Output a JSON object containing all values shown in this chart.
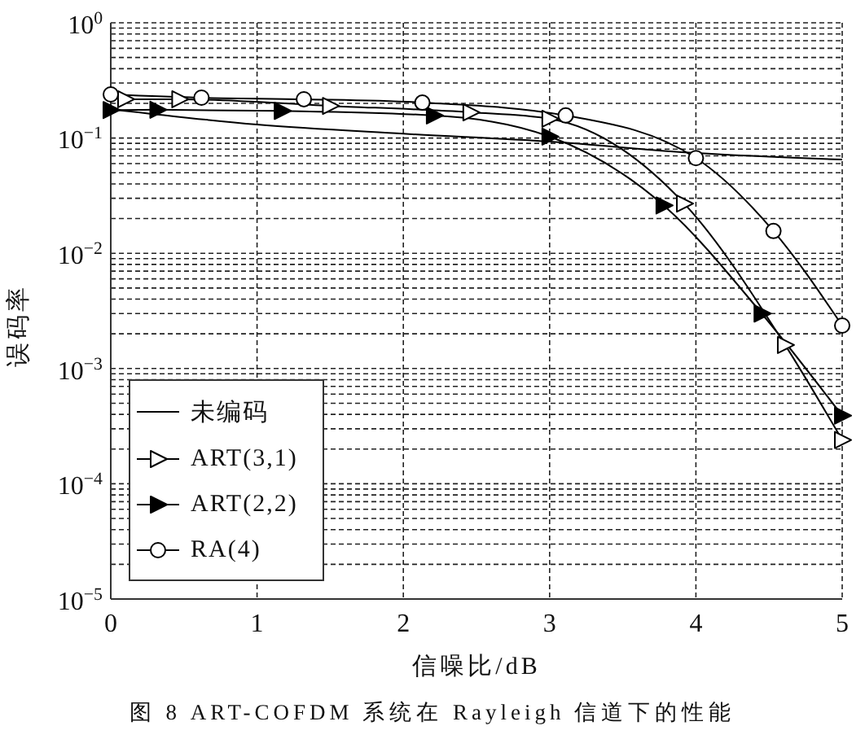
{
  "chart_data": {
    "type": "line",
    "xlabel": "信噪比/dB",
    "ylabel": "误码率",
    "annotations": [
      "图 8 ART-COFDM 系统在 Rayleigh 信道下的性能"
    ],
    "xlim": [
      0,
      5
    ],
    "xticks": [
      0,
      1,
      2,
      3,
      4,
      5
    ],
    "ylim": [
      1e-05,
      1
    ],
    "yticks": [
      {
        "value": 1e-05,
        "label": "10$^{−5}$"
      },
      {
        "value": 2e-05,
        "label": null
      },
      {
        "value": 3e-05,
        "label": null
      },
      {
        "value": 4e-05,
        "label": null
      },
      {
        "value": 5e-05,
        "label": null
      },
      {
        "value": 6e-05,
        "label": null
      },
      {
        "value": 7e-05,
        "label": null
      },
      {
        "value": 8e-05,
        "label": null
      },
      {
        "value": 9e-05,
        "label": null
      },
      {
        "value": 0.0001,
        "label": "10$^{−4}$"
      },
      {
        "value": 0.0002,
        "label": null
      },
      {
        "value": 0.0003,
        "label": null
      },
      {
        "value": 0.0004,
        "label": null
      },
      {
        "value": 0.0005,
        "label": null
      },
      {
        "value": 0.0006,
        "label": null
      },
      {
        "value": 0.0007,
        "label": null
      },
      {
        "value": 0.0008,
        "label": null
      },
      {
        "value": 0.0009,
        "label": null
      },
      {
        "value": 0.001,
        "label": "10$^{−3}$"
      },
      {
        "value": 0.002,
        "label": null
      },
      {
        "value": 0.003,
        "label": null
      },
      {
        "value": 0.004,
        "label": null
      },
      {
        "value": 0.005,
        "label": null
      },
      {
        "value": 0.006,
        "label": null
      },
      {
        "value": 0.007,
        "label": null
      },
      {
        "value": 0.008,
        "label": null
      },
      {
        "value": 0.009,
        "label": null
      },
      {
        "value": 0.01,
        "label": "10$^{−2}$"
      },
      {
        "value": 0.02,
        "label": null
      },
      {
        "value": 0.03,
        "label": null
      },
      {
        "value": 0.04,
        "label": null
      },
      {
        "value": 0.05,
        "label": null
      },
      {
        "value": 0.06,
        "label": null
      },
      {
        "value": 0.07,
        "label": null
      },
      {
        "value": 0.08,
        "label": null
      },
      {
        "value": 0.09,
        "label": null
      },
      {
        "value": 0.1,
        "label": "10$^{−1}$"
      },
      {
        "value": 0.2,
        "label": null
      },
      {
        "value": 0.3,
        "label": null
      },
      {
        "value": 0.4,
        "label": null
      },
      {
        "value": 0.5,
        "label": null
      },
      {
        "value": 0.6,
        "label": null
      },
      {
        "value": 0.7,
        "label": null
      },
      {
        "value": 0.8,
        "label": null
      },
      {
        "value": 0.9,
        "label": null
      },
      {
        "value": 1,
        "label": "10$^{0}$"
      }
    ],
    "log": "y",
    "grid": true,
    "legend": "bottom left",
    "line_style": "solid",
    "series": [
      {
        "name": "未编码",
        "color": "#000000",
        "marker": "none",
        "x": [
          0,
          1,
          2,
          3,
          4,
          5
        ],
        "values": [
          0.178,
          0.131,
          0.109,
          0.093,
          0.074,
          0.065
        ]
      },
      {
        "name": "ART(3,1)",
        "color": "#000000",
        "marker": "triangle",
        "x": [
          0.1,
          0.47,
          1.5,
          2.46,
          3.0,
          3.92,
          4.61,
          5.0
        ],
        "values": [
          0.217,
          0.217,
          0.19,
          0.167,
          0.147,
          0.027,
          0.0016,
          0.00024
        ]
      },
      {
        "name": "ART(2,2)",
        "color": "#000000",
        "marker": "triangle",
        "x": [
          0,
          0.32,
          1.17,
          2.21,
          3.0,
          3.78,
          4.45,
          5.0
        ],
        "values": [
          0.175,
          0.176,
          0.172,
          0.157,
          0.103,
          0.026,
          0.003,
          0.00039
        ]
      },
      {
        "name": "RA(4)",
        "color": "#000000",
        "marker": "circle",
        "x": [
          0,
          0.62,
          1.32,
          2.13,
          3.11,
          4.0,
          4.53,
          5.0
        ],
        "values": [
          0.239,
          0.224,
          0.217,
          0.203,
          0.157,
          0.067,
          0.0156,
          0.00236
        ]
      }
    ]
  }
}
